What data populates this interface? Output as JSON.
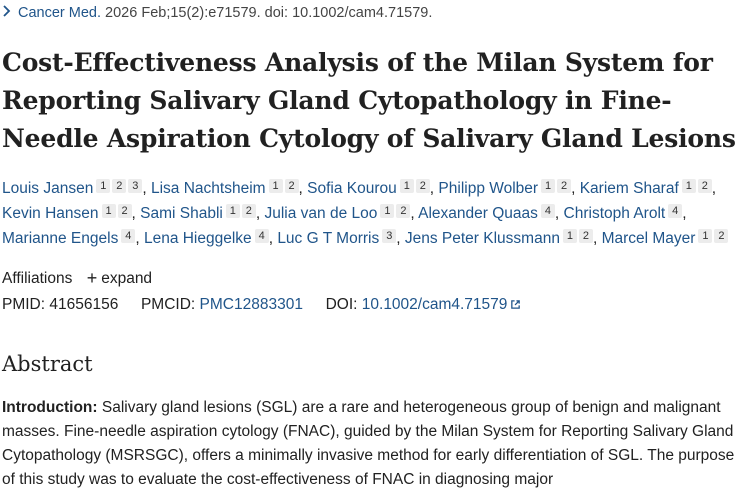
{
  "citation": {
    "journal": "Cancer Med.",
    "details": "2026 Feb;15(2):e71579. doi: 10.1002/cam4.71579."
  },
  "title": "Cost-Effectiveness Analysis of the Milan System for Reporting Salivary Gland Cytopathology in Fine-Needle Aspiration Cytology of Salivary Gland Lesions",
  "authors": [
    {
      "name": "Louis Jansen",
      "affils": [
        "1",
        "2",
        "3"
      ]
    },
    {
      "name": "Lisa Nachtsheim",
      "affils": [
        "1",
        "2"
      ]
    },
    {
      "name": "Sofia Kourou",
      "affils": [
        "1",
        "2"
      ]
    },
    {
      "name": "Philipp Wolber",
      "affils": [
        "1",
        "2"
      ]
    },
    {
      "name": "Kariem Sharaf",
      "affils": [
        "1",
        "2"
      ]
    },
    {
      "name": "Kevin Hansen",
      "affils": [
        "1",
        "2"
      ]
    },
    {
      "name": "Sami Shabli",
      "affils": [
        "1",
        "2"
      ]
    },
    {
      "name": "Julia van de Loo",
      "affils": [
        "1",
        "2"
      ]
    },
    {
      "name": "Alexander Quaas",
      "affils": [
        "4"
      ]
    },
    {
      "name": "Christoph Arolt",
      "affils": [
        "4"
      ]
    },
    {
      "name": "Marianne Engels",
      "affils": [
        "4"
      ]
    },
    {
      "name": "Lena Hieggelke",
      "affils": [
        "4"
      ]
    },
    {
      "name": "Luc G T Morris",
      "affils": [
        "3"
      ]
    },
    {
      "name": "Jens Peter Klussmann",
      "affils": [
        "1",
        "2"
      ]
    },
    {
      "name": "Marcel Mayer",
      "affils": [
        "1",
        "2"
      ]
    }
  ],
  "affiliations": {
    "label": "Affiliations",
    "expand_label": "expand"
  },
  "ids": {
    "pmid_label": "PMID:",
    "pmid": "41656156",
    "pmcid_label": "PMCID:",
    "pmcid": "PMC12883301",
    "doi_label": "DOI:",
    "doi": "10.1002/cam4.71579"
  },
  "abstract": {
    "heading": "Abstract",
    "intro_label": "Introduction:",
    "intro_text": "Salivary gland lesions (SGL) are a rare and heterogeneous group of benign and malignant masses. Fine-needle aspiration cytology (FNAC), guided by the Milan System for Reporting Salivary Gland Cytopathology (MSRSGC), offers a minimally invasive method for early differentiation of SGL. The purpose of this study was to evaluate the cost-effectiveness of FNAC in diagnosing major"
  },
  "colors": {
    "link": "#20558a",
    "text": "#212121"
  }
}
